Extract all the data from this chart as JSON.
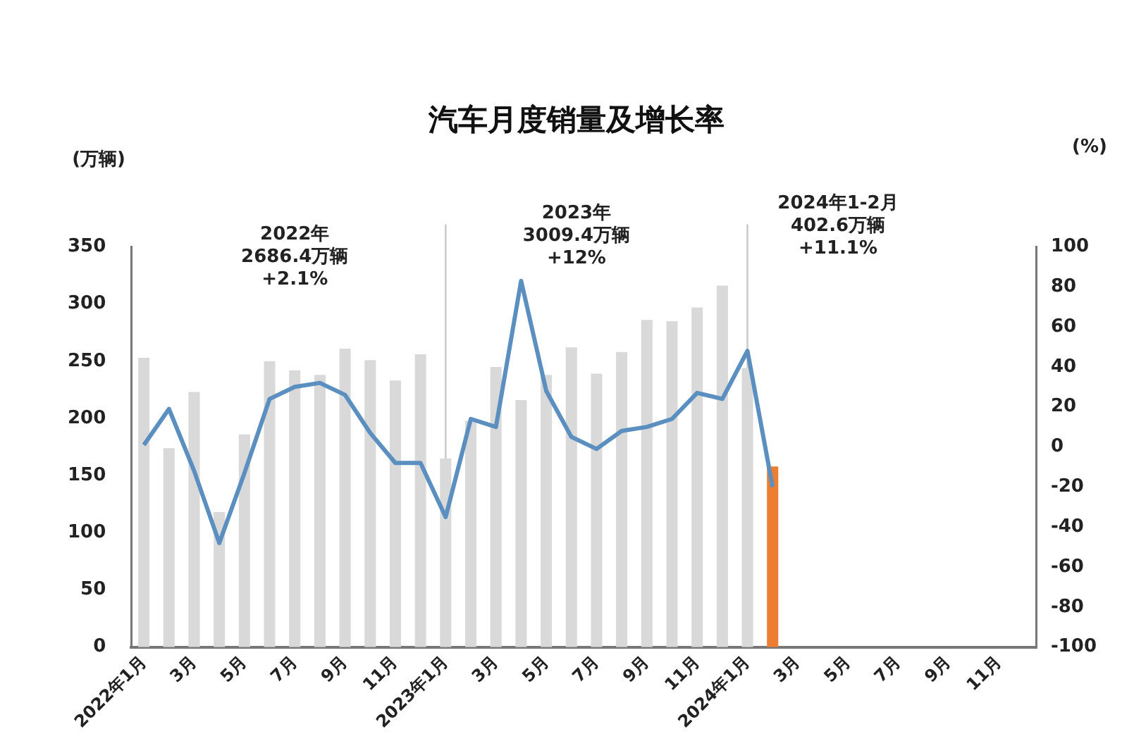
{
  "chart_data": {
    "type": "bar",
    "title": "汽车月度销量及增长率",
    "ylabel": "(万辆)",
    "y2label": "(%)",
    "categories": [
      "2022年1月",
      null,
      "3月",
      null,
      "5月",
      null,
      "7月",
      null,
      "9月",
      null,
      "11月",
      null,
      "2023年1月",
      null,
      "3月",
      null,
      "5月",
      null,
      "7月",
      null,
      "9月",
      null,
      "11月",
      null,
      "2024年1月",
      null,
      "3月",
      null,
      "5月",
      null,
      "7月",
      null,
      "9月",
      null,
      "11月",
      null
    ],
    "series": [
      {
        "values": [
          253,
          174,
          223,
          118,
          186,
          250,
          242,
          238,
          261,
          251,
          233,
          256,
          165,
          198,
          245,
          216,
          238,
          262,
          239,
          258,
          286,
          285,
          297,
          316,
          244,
          158,
          null,
          null,
          null,
          null,
          null,
          null,
          null,
          null,
          null,
          null
        ],
        "colors": [
          "#d9d9d9",
          "#d9d9d9",
          "#d9d9d9",
          "#d9d9d9",
          "#d9d9d9",
          "#d9d9d9",
          "#d9d9d9",
          "#d9d9d9",
          "#d9d9d9",
          "#d9d9d9",
          "#d9d9d9",
          "#d9d9d9",
          "#d9d9d9",
          "#d9d9d9",
          "#d9d9d9",
          "#d9d9d9",
          "#d9d9d9",
          "#d9d9d9",
          "#d9d9d9",
          "#d9d9d9",
          "#d9d9d9",
          "#d9d9d9",
          "#d9d9d9",
          "#d9d9d9",
          "#d9d9d9",
          "#ed7d31",
          "#d9d9d9",
          "#d9d9d9",
          "#d9d9d9",
          "#d9d9d9",
          "#d9d9d9",
          "#d9d9d9",
          "#d9d9d9",
          "#d9d9d9",
          "#d9d9d9",
          "#d9d9d9"
        ]
      },
      {
        "type": "line",
        "axis": "y2",
        "color": "#5b8fc0",
        "values": [
          1,
          19,
          -12,
          -48,
          -13,
          24,
          30,
          32,
          26,
          7,
          -8,
          -8,
          -35,
          14,
          10,
          83,
          28,
          5,
          -1,
          8,
          10,
          14,
          27,
          24,
          48,
          -20,
          null,
          null,
          null,
          null,
          null,
          null,
          null,
          null,
          null,
          null
        ]
      }
    ],
    "ylim": [
      0,
      350
    ],
    "yticks": [
      0,
      50,
      100,
      150,
      200,
      250,
      300,
      350
    ],
    "y2lim": [
      -100,
      100
    ],
    "y2ticks": [
      -100,
      -80,
      -60,
      -40,
      -20,
      0,
      20,
      40,
      60,
      80,
      100
    ],
    "ref_lines": [
      {
        "axis": "x",
        "value": "2023年1月",
        "color": "#c8c8c8"
      },
      {
        "axis": "x",
        "value": "2024年1月",
        "color": "#c8c8c8"
      }
    ],
    "annotations": [
      "2022年\n2686.4万辆\n+2.1%",
      "2023年\n3009.4万辆\n+12%",
      "2024年1-2月\n402.6万辆\n+11.1%"
    ],
    "grid": false,
    "legend": false,
    "marker": "none",
    "line_style": "solid"
  }
}
